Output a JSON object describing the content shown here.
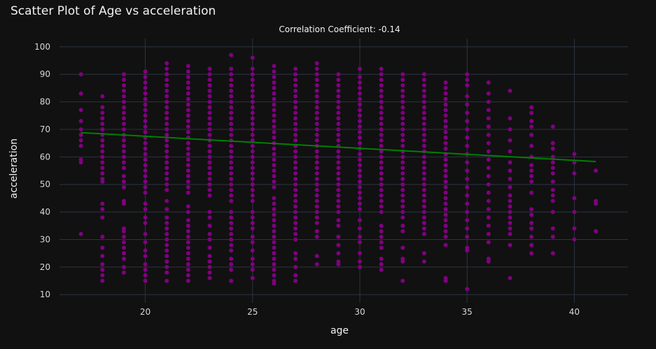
{
  "chart_data": {
    "type": "scatter",
    "title": "Scatter Plot of Age vs acceleration",
    "subtitle": "Correlation Coefficient: -0.14",
    "xlabel": "age",
    "ylabel": "acceleration",
    "xlim": [
      16,
      42.5
    ],
    "ylim": [
      7,
      103
    ],
    "xticks": [
      20,
      25,
      30,
      35,
      40
    ],
    "yticks": [
      10,
      20,
      30,
      40,
      50,
      60,
      70,
      80,
      90,
      100
    ],
    "grid": true,
    "point_color": "#800080",
    "line_color": "#008000",
    "trendline": {
      "x": [
        17,
        41
      ],
      "y": [
        68.8,
        58.3
      ]
    },
    "series": [
      {
        "x": 17,
        "y": [
          90,
          83,
          77,
          73,
          70,
          68,
          66,
          64,
          59,
          58,
          32
        ]
      },
      {
        "x": 18,
        "y": [
          82,
          78,
          76,
          74,
          72,
          70,
          68,
          66,
          64,
          62,
          60,
          58,
          56,
          54,
          52,
          51,
          43,
          41,
          38,
          31,
          27,
          24,
          21,
          19,
          17,
          15
        ]
      },
      {
        "x": 19,
        "y": [
          90,
          88,
          86,
          84,
          82,
          80,
          78,
          76,
          74,
          72,
          70,
          68,
          66,
          64,
          62,
          60,
          58,
          56,
          53,
          51,
          49,
          44,
          43,
          34,
          33,
          31,
          29,
          27,
          25,
          23,
          20,
          18
        ]
      },
      {
        "x": 20,
        "y": [
          91,
          89,
          87,
          85,
          83,
          81,
          79,
          77,
          75,
          73,
          71,
          69,
          67,
          65,
          63,
          61,
          59,
          57,
          55,
          53,
          51,
          49,
          47,
          43,
          41,
          38,
          36,
          32,
          29,
          26,
          24,
          21,
          19,
          17,
          15
        ]
      },
      {
        "x": 21,
        "y": [
          94,
          92,
          90,
          88,
          86,
          84,
          82,
          80,
          78,
          76,
          74,
          72,
          70,
          68,
          66,
          64,
          62,
          60,
          58,
          56,
          54,
          52,
          50,
          48,
          44,
          41,
          38,
          36,
          34,
          32,
          30,
          28,
          26,
          24,
          22,
          20,
          18,
          15
        ]
      },
      {
        "x": 22,
        "y": [
          93,
          91,
          89,
          87,
          85,
          83,
          81,
          79,
          77,
          75,
          73,
          71,
          69,
          67,
          65,
          63,
          61,
          59,
          57,
          55,
          53,
          51,
          49,
          47,
          42,
          40,
          37,
          35,
          33,
          31,
          29,
          27,
          25,
          23,
          21,
          19,
          17,
          15
        ]
      },
      {
        "x": 23,
        "y": [
          92,
          90,
          88,
          86,
          84,
          82,
          80,
          78,
          76,
          74,
          72,
          70,
          68,
          66,
          64,
          62,
          60,
          58,
          56,
          54,
          52,
          50,
          48,
          46,
          40,
          38,
          35,
          32,
          30,
          27,
          24,
          22,
          20,
          18,
          16
        ]
      },
      {
        "x": 24,
        "y": [
          97,
          92,
          90,
          88,
          86,
          84,
          82,
          80,
          78,
          76,
          74,
          72,
          70,
          68,
          66,
          64,
          62,
          60,
          58,
          56,
          54,
          52,
          50,
          48,
          46,
          44,
          40,
          38,
          36,
          34,
          32,
          30,
          28,
          26,
          23,
          21,
          19,
          15
        ]
      },
      {
        "x": 25,
        "y": [
          96,
          92,
          90,
          88,
          86,
          84,
          82,
          80,
          78,
          76,
          74,
          72,
          70,
          68,
          66,
          64,
          62,
          60,
          58,
          56,
          54,
          52,
          50,
          48,
          46,
          44,
          40,
          38,
          36,
          34,
          31,
          29,
          26,
          23,
          21,
          19,
          16
        ]
      },
      {
        "x": 26,
        "y": [
          93,
          91,
          89,
          87,
          85,
          83,
          81,
          79,
          77,
          75,
          73,
          71,
          69,
          67,
          65,
          63,
          61,
          59,
          57,
          55,
          53,
          51,
          49,
          45,
          43,
          41,
          39,
          37,
          35,
          33,
          31,
          29,
          27,
          25,
          23,
          21,
          19,
          17,
          15,
          14
        ]
      },
      {
        "x": 27,
        "y": [
          92,
          90,
          88,
          86,
          84,
          82,
          80,
          78,
          76,
          74,
          72,
          70,
          68,
          66,
          64,
          62,
          60,
          58,
          56,
          54,
          52,
          50,
          48,
          46,
          44,
          42,
          40,
          38,
          36,
          34,
          32,
          30,
          25,
          23,
          20,
          17,
          15
        ]
      },
      {
        "x": 28,
        "y": [
          94,
          92,
          90,
          88,
          86,
          84,
          82,
          80,
          78,
          76,
          74,
          72,
          70,
          68,
          66,
          64,
          62,
          60,
          58,
          56,
          54,
          52,
          50,
          48,
          46,
          44,
          42,
          40,
          38,
          36,
          33,
          31,
          24,
          21
        ]
      },
      {
        "x": 29,
        "y": [
          90,
          88,
          86,
          84,
          82,
          80,
          78,
          76,
          74,
          72,
          70,
          68,
          66,
          64,
          62,
          60,
          58,
          56,
          54,
          52,
          50,
          48,
          46,
          44,
          42,
          40,
          37,
          35,
          31,
          28,
          25,
          22,
          21
        ]
      },
      {
        "x": 30,
        "y": [
          92,
          89,
          87,
          85,
          83,
          81,
          79,
          77,
          75,
          73,
          71,
          69,
          67,
          65,
          63,
          61,
          59,
          57,
          55,
          53,
          51,
          49,
          47,
          45,
          43,
          41,
          37,
          34,
          31,
          29,
          25,
          22,
          20
        ]
      },
      {
        "x": 31,
        "y": [
          92,
          90,
          88,
          86,
          84,
          82,
          80,
          78,
          76,
          74,
          72,
          70,
          68,
          66,
          64,
          62,
          60,
          58,
          56,
          54,
          52,
          50,
          48,
          46,
          44,
          42,
          40,
          35,
          33,
          31,
          29,
          27,
          23,
          21,
          19
        ]
      },
      {
        "x": 32,
        "y": [
          90,
          88,
          86,
          84,
          82,
          80,
          78,
          76,
          74,
          72,
          70,
          68,
          66,
          64,
          62,
          60,
          58,
          56,
          54,
          52,
          50,
          48,
          46,
          44,
          42,
          40,
          38,
          35,
          33,
          27,
          23,
          22,
          15
        ]
      },
      {
        "x": 33,
        "y": [
          90,
          88,
          86,
          84,
          82,
          80,
          78,
          76,
          74,
          72,
          70,
          68,
          66,
          64,
          62,
          60,
          58,
          56,
          54,
          52,
          50,
          48,
          46,
          44,
          42,
          40,
          38,
          36,
          34,
          32,
          25,
          22
        ]
      },
      {
        "x": 34,
        "y": [
          87,
          85,
          83,
          81,
          79,
          77,
          75,
          73,
          71,
          69,
          67,
          65,
          63,
          61,
          59,
          57,
          55,
          53,
          51,
          49,
          47,
          45,
          43,
          41,
          39,
          37,
          35,
          33,
          31,
          28,
          16,
          15
        ]
      },
      {
        "x": 35,
        "y": [
          90,
          88,
          86,
          82,
          79,
          76,
          73,
          70,
          67,
          64,
          61,
          58,
          55,
          52,
          49,
          46,
          43,
          40,
          37,
          34,
          31,
          27,
          26,
          12
        ]
      },
      {
        "x": 36,
        "y": [
          87,
          83,
          80,
          77,
          74,
          71,
          68,
          65,
          62,
          59,
          56,
          53,
          50,
          47,
          44,
          41,
          38,
          35,
          32,
          29,
          23,
          22
        ]
      },
      {
        "x": 37,
        "y": [
          84,
          74,
          70,
          66,
          62,
          58,
          55,
          52,
          49,
          46,
          44,
          42,
          40,
          38,
          36,
          34,
          32,
          28,
          16
        ]
      },
      {
        "x": 38,
        "y": [
          78,
          76,
          73,
          71,
          68,
          64,
          60,
          57,
          55,
          53,
          51,
          47,
          41,
          39,
          36,
          34,
          31,
          28,
          25
        ]
      },
      {
        "x": 39,
        "y": [
          71,
          65,
          63,
          60,
          58,
          56,
          54,
          51,
          48,
          46,
          44,
          40,
          34,
          31,
          25
        ]
      },
      {
        "x": 40,
        "y": [
          61,
          58,
          54,
          45,
          40,
          34,
          30
        ]
      },
      {
        "x": 41,
        "y": [
          55,
          44,
          43,
          33
        ]
      }
    ]
  }
}
